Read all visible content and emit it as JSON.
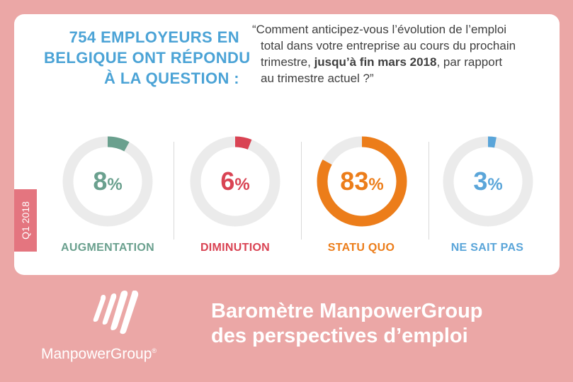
{
  "headline": {
    "lines": [
      "754 EMPLOYEURS EN",
      "BELGIQUE ONT RÉPONDU",
      "À LA QUESTION :"
    ],
    "color": "#4ba3d6"
  },
  "question": {
    "line1": "“Comment anticipez-vous l’évolution de l’emploi",
    "line2": "total dans votre entreprise au cours du prochain",
    "line3_pre": "trimestre, ",
    "line3_bold": "jusqu’à fin mars 2018",
    "line3_post": ", par rapport",
    "line4": "au trimestre actuel ?”"
  },
  "chart_data": {
    "type": "donut",
    "unit": "%",
    "categories": [
      "AUGMENTATION",
      "DIMINUTION",
      "STATU QUO",
      "NE SAIT PAS"
    ],
    "values": [
      8,
      6,
      83,
      3
    ],
    "value_labels": [
      "8",
      "6",
      "83",
      "3"
    ],
    "colors": [
      "#6aa08e",
      "#d94353",
      "#ec7d1a",
      "#5aa5d9"
    ],
    "track_color": "#ebebeb"
  },
  "side_tab": {
    "label": "Q1 2018",
    "color": "#e4757f"
  },
  "footer": {
    "logo_text": "ManpowerGroup",
    "logo_mark": "®",
    "title_line1": "Baromètre ManpowerGroup",
    "title_line2": "des perspectives d’emploi"
  }
}
